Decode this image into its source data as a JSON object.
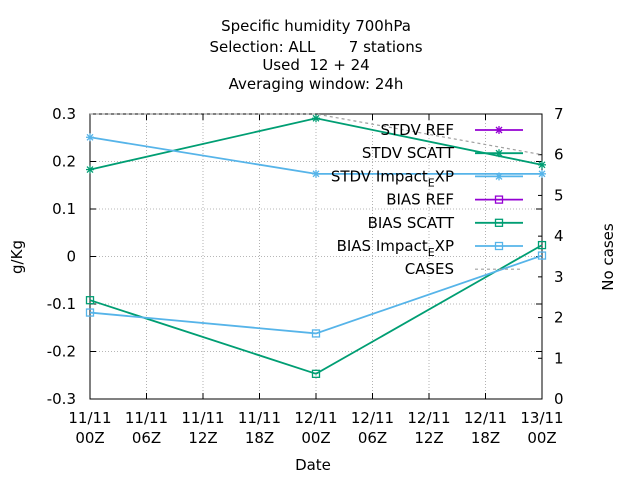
{
  "chart_data": {
    "type": "line",
    "title_lines": [
      "Specific humidity 700hPa",
      "Selection: ALL       7 stations",
      "Used  12 + 24",
      "Averaging window: 24h"
    ],
    "xlabel": "Date",
    "ylabel": "g/Kg",
    "y2label": "No cases",
    "x_ticks": [
      [
        "11/11",
        "00Z"
      ],
      [
        "11/11",
        "06Z"
      ],
      [
        "11/11",
        "12Z"
      ],
      [
        "11/11",
        "18Z"
      ],
      [
        "12/11",
        "00Z"
      ],
      [
        "12/11",
        "06Z"
      ],
      [
        "12/11",
        "12Z"
      ],
      [
        "12/11",
        "18Z"
      ],
      [
        "13/11",
        "00Z"
      ]
    ],
    "x_hours_range": [
      0,
      48
    ],
    "ylim": [
      -0.3,
      0.3
    ],
    "y_ticks": [
      "-0.3",
      "-0.2",
      "-0.1",
      "0",
      "0.1",
      "0.2",
      "0.3"
    ],
    "y2lim": [
      0,
      7
    ],
    "y2_ticks": [
      "0",
      "1",
      "2",
      "3",
      "4",
      "5",
      "6",
      "7"
    ],
    "grid": true,
    "legend_position": "top-right",
    "series": [
      {
        "name": "STDV REF",
        "axis": "y",
        "color": "#9400d3",
        "marker": "star",
        "dashed": false,
        "x": [],
        "values": []
      },
      {
        "name": "STDV SCATT",
        "axis": "y",
        "color": "#009e73",
        "marker": "star",
        "dashed": false,
        "x": [
          0,
          24,
          48
        ],
        "values": [
          0.183,
          0.291,
          0.193
        ]
      },
      {
        "name": "STDV Impact_EXP",
        "axis": "y",
        "color": "#56b4e9",
        "marker": "star",
        "dashed": false,
        "x": [
          0,
          24,
          48
        ],
        "values": [
          0.251,
          0.174,
          0.174
        ]
      },
      {
        "name": "BIAS REF",
        "axis": "y",
        "color": "#9400d3",
        "marker": "square",
        "dashed": false,
        "x": [],
        "values": []
      },
      {
        "name": "BIAS SCATT",
        "axis": "y",
        "color": "#009e73",
        "marker": "square",
        "dashed": false,
        "x": [
          0,
          24,
          48
        ],
        "values": [
          -0.092,
          -0.247,
          0.024
        ]
      },
      {
        "name": "BIAS Impact_EXP",
        "axis": "y",
        "color": "#56b4e9",
        "marker": "square",
        "dashed": false,
        "x": [
          0,
          24,
          48
        ],
        "values": [
          -0.118,
          -0.162,
          0.002
        ]
      },
      {
        "name": "CASES",
        "axis": "y2",
        "color": "#a0a0a0",
        "marker": "none",
        "dashed": true,
        "x": [
          0,
          24,
          48
        ],
        "values": [
          7,
          7,
          6
        ]
      }
    ]
  }
}
